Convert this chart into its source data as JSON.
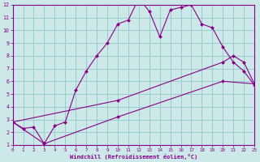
{
  "xlabel": "Windchill (Refroidissement éolien,°C)",
  "bg_color": "#cce8e8",
  "grid_color": "#99cccc",
  "line_color": "#880088",
  "spine_color": "#880088",
  "xmin": 0,
  "xmax": 23,
  "ymin": 1,
  "ymax": 12,
  "xticks": [
    0,
    1,
    2,
    3,
    4,
    5,
    6,
    7,
    8,
    9,
    10,
    11,
    12,
    13,
    14,
    15,
    16,
    17,
    18,
    19,
    20,
    21,
    22,
    23
  ],
  "yticks": [
    1,
    2,
    3,
    4,
    5,
    6,
    7,
    8,
    9,
    10,
    11,
    12
  ],
  "line1_x": [
    0,
    1,
    2,
    3,
    4,
    5,
    6,
    7,
    8,
    9,
    10,
    11,
    12,
    13,
    14,
    15,
    16,
    17,
    18,
    19,
    20,
    21,
    22,
    23
  ],
  "line1_y": [
    2.8,
    2.3,
    2.4,
    1.1,
    2.5,
    2.8,
    5.3,
    6.8,
    8.0,
    9.0,
    10.5,
    10.8,
    12.5,
    11.5,
    9.5,
    11.6,
    11.8,
    12.0,
    10.5,
    10.2,
    8.7,
    7.5,
    6.8,
    5.7
  ],
  "line2_x": [
    0,
    10,
    20,
    21,
    22,
    23
  ],
  "line2_y": [
    2.8,
    4.5,
    7.5,
    8.0,
    7.5,
    5.8
  ],
  "line3_x": [
    0,
    3,
    10,
    20,
    23
  ],
  "line3_y": [
    2.8,
    1.1,
    3.2,
    6.0,
    5.8
  ]
}
